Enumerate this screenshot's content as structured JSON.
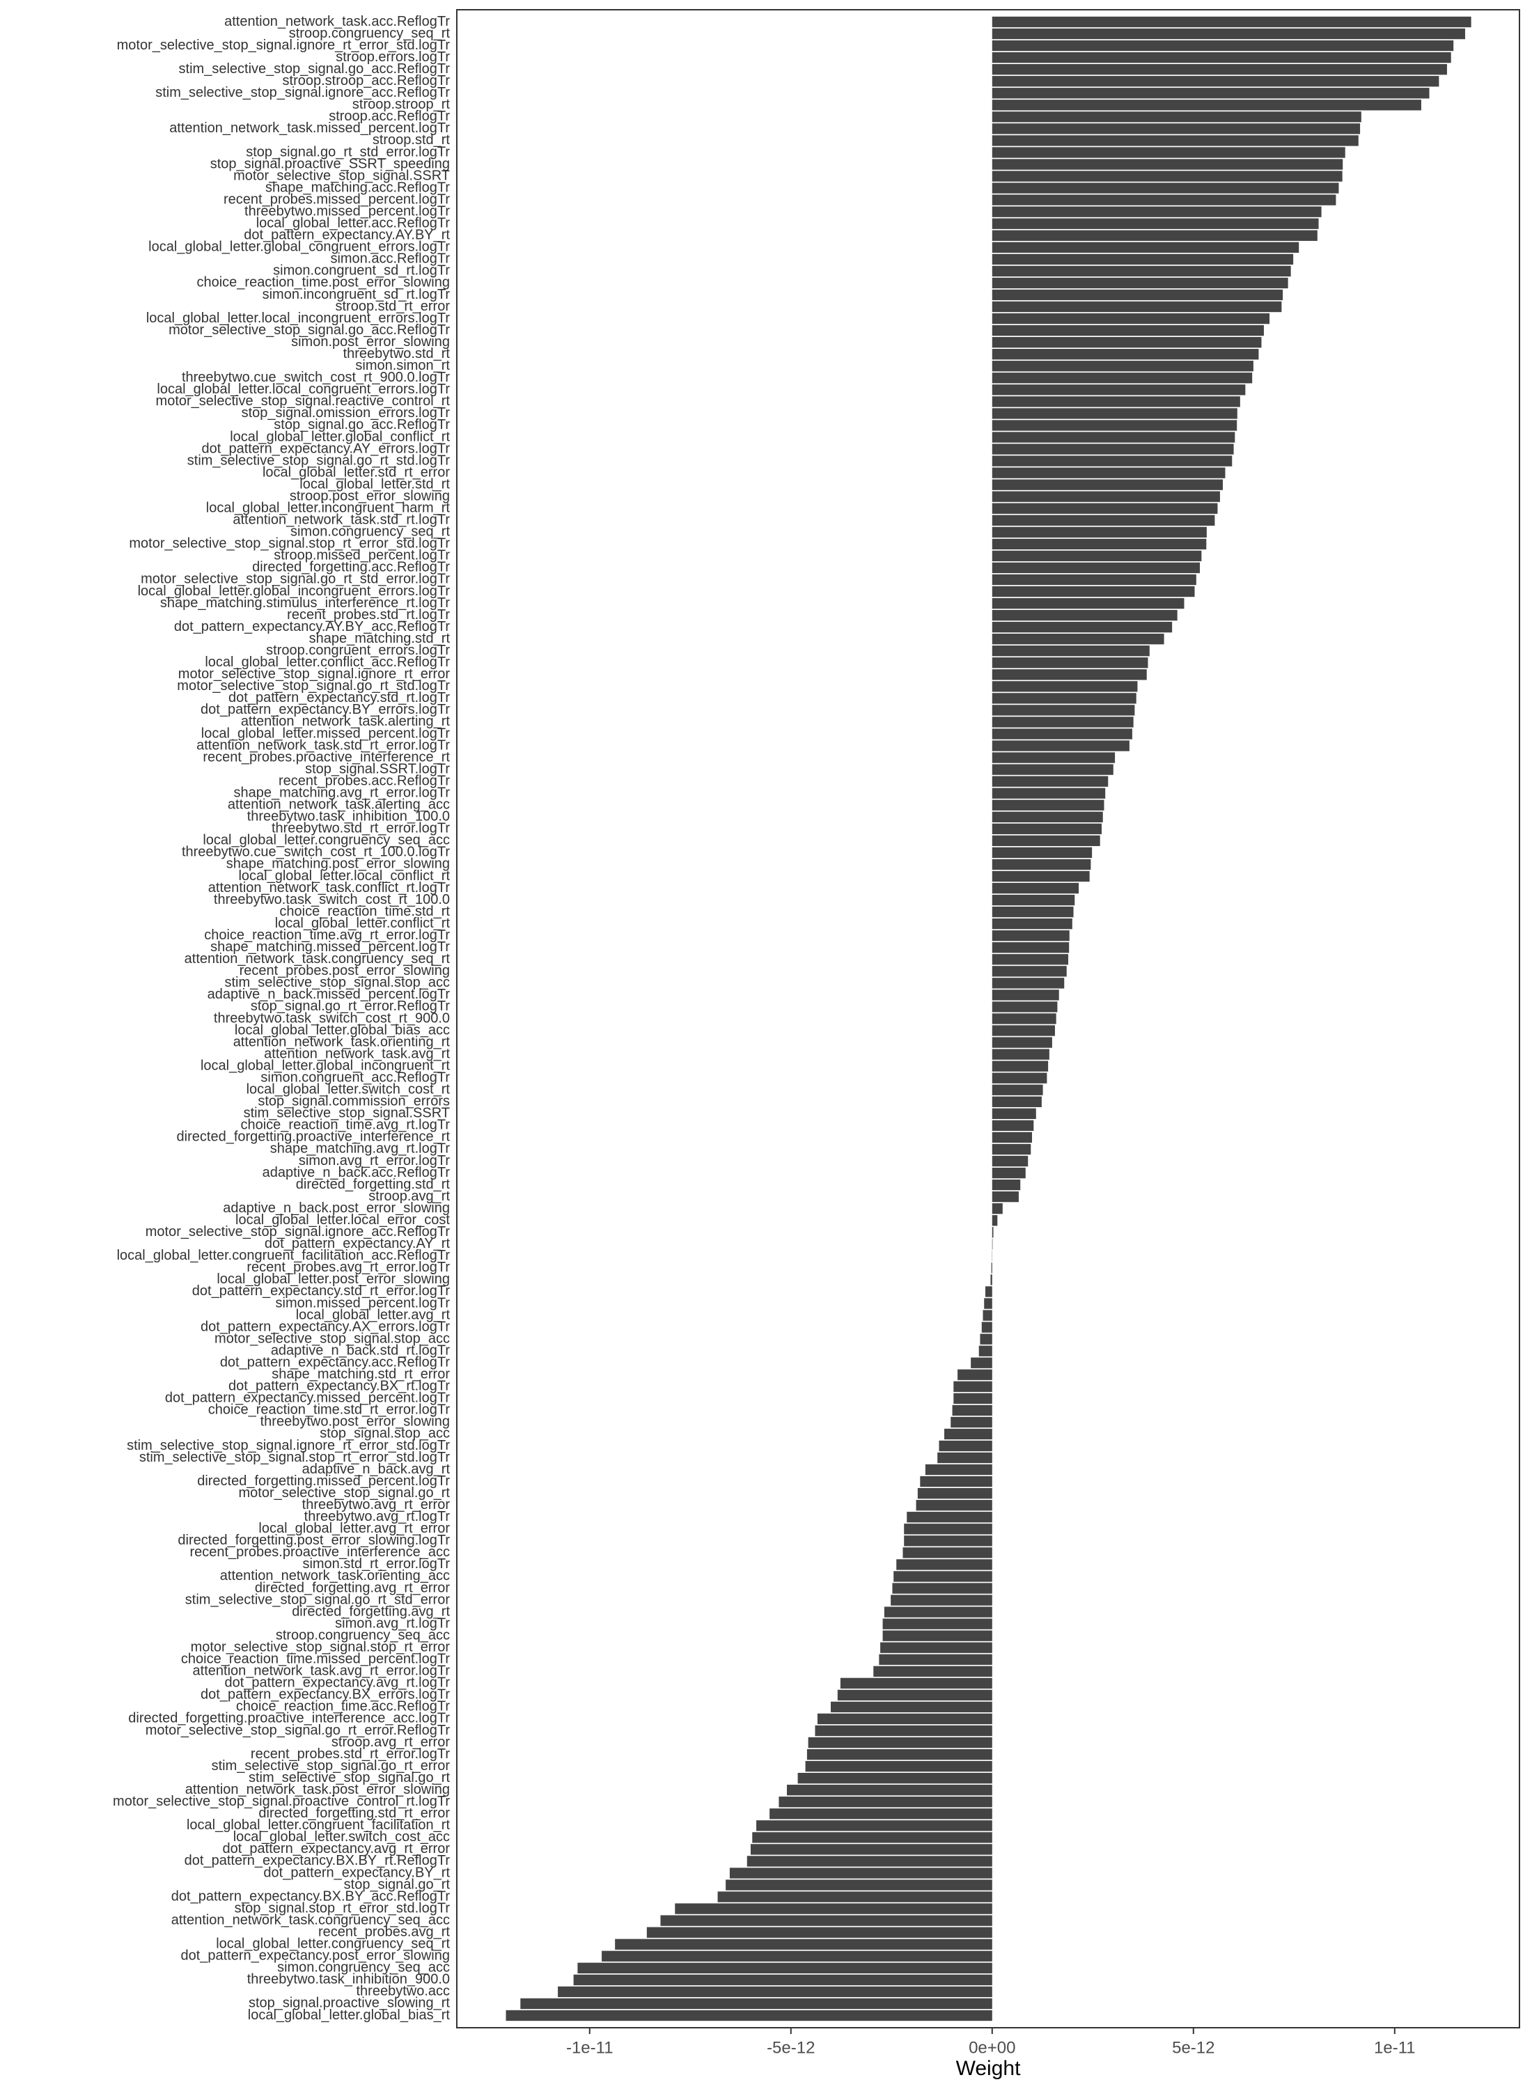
{
  "chart_data": {
    "type": "barh",
    "xlabel": "Weight",
    "color": "#444444",
    "categories": [
      "attention_network_task.acc.ReflogTr",
      "stroop.congruency_seq_rt",
      "motor_selective_stop_signal.ignore_rt_error_std.logTr",
      "stroop.errors.logTr",
      "stim_selective_stop_signal.go_acc.ReflogTr",
      "stroop.stroop_acc.ReflogTr",
      "stim_selective_stop_signal.ignore_acc.ReflogTr",
      "stroop.stroop_rt",
      "stroop.acc.ReflogTr",
      "attention_network_task.missed_percent.logTr",
      "stroop.std_rt",
      "stop_signal.go_rt_std_error.logTr",
      "stop_signal.proactive_SSRT_speeding",
      "motor_selective_stop_signal.SSRT",
      "shape_matching.acc.ReflogTr",
      "recent_probes.missed_percent.logTr",
      "threebytwo.missed_percent.logTr",
      "local_global_letter.acc.ReflogTr",
      "dot_pattern_expectancy.AY.BY_rt",
      "local_global_letter.global_congruent_errors.logTr",
      "simon.acc.ReflogTr",
      "simon.congruent_sd_rt.logTr",
      "choice_reaction_time.post_error_slowing",
      "simon.incongruent_sd_rt.logTr",
      "stroop.std_rt_error",
      "local_global_letter.local_incongruent_errors.logTr",
      "motor_selective_stop_signal.go_acc.ReflogTr",
      "simon.post_error_slowing",
      "threebytwo.std_rt",
      "simon.simon_rt",
      "threebytwo.cue_switch_cost_rt_900.0.logTr",
      "local_global_letter.local_congruent_errors.logTr",
      "motor_selective_stop_signal.reactive_control_rt",
      "stop_signal.omission_errors.logTr",
      "stop_signal.go_acc.ReflogTr",
      "local_global_letter.global_conflict_rt",
      "dot_pattern_expectancy.AY_errors.logTr",
      "stim_selective_stop_signal.go_rt_std.logTr",
      "local_global_letter.std_rt_error",
      "local_global_letter.std_rt",
      "stroop.post_error_slowing",
      "local_global_letter.incongruent_harm_rt",
      "attention_network_task.std_rt.logTr",
      "simon.congruency_seq_rt",
      "motor_selective_stop_signal.stop_rt_error_std.logTr",
      "stroop.missed_percent.logTr",
      "directed_forgetting.acc.ReflogTr",
      "motor_selective_stop_signal.go_rt_std_error.logTr",
      "local_global_letter.global_incongruent_errors.logTr",
      "shape_matching.stimulus_interference_rt.logTr",
      "recent_probes.std_rt.logTr",
      "dot_pattern_expectancy.AY.BY_acc.ReflogTr",
      "shape_matching.std_rt",
      "stroop.congruent_errors.logTr",
      "local_global_letter.conflict_acc.ReflogTr",
      "motor_selective_stop_signal.ignore_rt_error",
      "motor_selective_stop_signal.go_rt_std.logTr",
      "dot_pattern_expectancy.std_rt.logTr",
      "dot_pattern_expectancy.BY_errors.logTr",
      "attention_network_task.alerting_rt",
      "local_global_letter.missed_percent.logTr",
      "attention_network_task.std_rt_error.logTr",
      "recent_probes.proactive_interference_rt",
      "stop_signal.SSRT.logTr",
      "recent_probes.acc.ReflogTr",
      "shape_matching.avg_rt_error.logTr",
      "attention_network_task.alerting_acc",
      "threebytwo.task_inhibition_100.0",
      "threebytwo.std_rt_error.logTr",
      "local_global_letter.congruency_seq_acc",
      "threebytwo.cue_switch_cost_rt_100.0.logTr",
      "shape_matching.post_error_slowing",
      "local_global_letter.local_conflict_rt",
      "attention_network_task.conflict_rt.logTr",
      "threebytwo.task_switch_cost_rt_100.0",
      "choice_reaction_time.std_rt",
      "local_global_letter.conflict_rt",
      "choice_reaction_time.avg_rt_error.logTr",
      "shape_matching.missed_percent.logTr",
      "attention_network_task.congruency_seq_rt",
      "recent_probes.post_error_slowing",
      "stim_selective_stop_signal.stop_acc",
      "adaptive_n_back.missed_percent.logTr",
      "stop_signal.go_rt_error.ReflogTr",
      "threebytwo.task_switch_cost_rt_900.0",
      "local_global_letter.global_bias_acc",
      "attention_network_task.orienting_rt",
      "attention_network_task.avg_rt",
      "local_global_letter.global_incongruent_rt",
      "simon.congruent_acc.ReflogTr",
      "local_global_letter.switch_cost_rt",
      "stop_signal.commission_errors",
      "stim_selective_stop_signal.SSRT",
      "choice_reaction_time.avg_rt.logTr",
      "directed_forgetting.proactive_interference_rt",
      "shape_matching.avg_rt.logTr",
      "simon.avg_rt_error.logTr",
      "adaptive_n_back.acc.ReflogTr",
      "directed_forgetting.std_rt",
      "stroop.avg_rt",
      "adaptive_n_back.post_error_slowing",
      "local_global_letter.local_error_cost",
      "motor_selective_stop_signal.ignore_acc.ReflogTr",
      "dot_pattern_expectancy.AY_rt",
      "local_global_letter.congruent_facilitation_acc.ReflogTr",
      "recent_probes.avg_rt_error.logTr",
      "local_global_letter.post_error_slowing",
      "dot_pattern_expectancy.std_rt_error.logTr",
      "simon.missed_percent.logTr",
      "local_global_letter.avg_rt",
      "dot_pattern_expectancy.AX_errors.logTr",
      "motor_selective_stop_signal.stop_acc",
      "adaptive_n_back.std_rt.logTr",
      "dot_pattern_expectancy.acc.ReflogTr",
      "shape_matching.std_rt_error",
      "dot_pattern_expectancy.BX_rt.logTr",
      "dot_pattern_expectancy.missed_percent.logTr",
      "choice_reaction_time.std_rt_error.logTr",
      "threebytwo.post_error_slowing",
      "stop_signal.stop_acc",
      "stim_selective_stop_signal.ignore_rt_error_std.logTr",
      "stim_selective_stop_signal.stop_rt_error_std.logTr",
      "adaptive_n_back.avg_rt",
      "directed_forgetting.missed_percent.logTr",
      "motor_selective_stop_signal.go_rt",
      "threebytwo.avg_rt_error",
      "threebytwo.avg_rt.logTr",
      "local_global_letter.avg_rt_error",
      "directed_forgetting.post_error_slowing.logTr",
      "recent_probes.proactive_interference_acc",
      "simon.std_rt_error.logTr",
      "attention_network_task.orienting_acc",
      "directed_forgetting.avg_rt_error",
      "stim_selective_stop_signal.go_rt_std_error",
      "directed_forgetting.avg_rt",
      "simon.avg_rt.logTr",
      "stroop.congruency_seq_acc",
      "motor_selective_stop_signal.stop_rt_error",
      "choice_reaction_time.missed_percent.logTr",
      "attention_network_task.avg_rt_error.logTr",
      "dot_pattern_expectancy.avg_rt.logTr",
      "dot_pattern_expectancy.BX_errors.logTr",
      "choice_reaction_time.acc.ReflogTr",
      "directed_forgetting.proactive_interference_acc.logTr",
      "motor_selective_stop_signal.go_rt_error.ReflogTr",
      "stroop.avg_rt_error",
      "recent_probes.std_rt_error.logTr",
      "stim_selective_stop_signal.go_rt_error",
      "stim_selective_stop_signal.go_rt",
      "attention_network_task.post_error_slowing",
      "motor_selective_stop_signal.proactive_control_rt.logTr",
      "directed_forgetting.std_rt_error",
      "local_global_letter.congruent_facilitation_rt",
      "local_global_letter.switch_cost_acc",
      "dot_pattern_expectancy.avg_rt_error",
      "dot_pattern_expectancy.BX.BY_rt.ReflogTr",
      "dot_pattern_expectancy.BY_rt",
      "stop_signal.go_rt",
      "dot_pattern_expectancy.BX.BY_acc.ReflogTr",
      "stop_signal.stop_rt_error_std.logTr",
      "attention_network_task.congruency_seq_acc",
      "recent_probes.avg_rt",
      "local_global_letter.congruency_seq_rt",
      "dot_pattern_expectancy.post_error_slowing",
      "simon.congruency_seq_acc",
      "threebytwo.task_inhibition_900.0",
      "threebytwo.acc",
      "stop_signal.proactive_slowing_rt",
      "local_global_letter.global_bias_rt"
    ],
    "values": [
      1.19e-11,
      1.175e-11,
      1.146e-11,
      1.14e-11,
      1.13e-11,
      1.11e-11,
      1.086e-11,
      1.066e-11,
      9.17e-12,
      9.14e-12,
      9.1e-12,
      8.77e-12,
      8.71e-12,
      8.7e-12,
      8.61e-12,
      8.54e-12,
      8.18e-12,
      8.11e-12,
      8.08e-12,
      7.62e-12,
      7.48e-12,
      7.42e-12,
      7.35e-12,
      7.22e-12,
      7.19e-12,
      6.89e-12,
      6.75e-12,
      6.69e-12,
      6.62e-12,
      6.49e-12,
      6.46e-12,
      6.29e-12,
      6.16e-12,
      6.09e-12,
      6.08e-12,
      6.03e-12,
      6e-12,
      5.96e-12,
      5.79e-12,
      5.73e-12,
      5.66e-12,
      5.6e-12,
      5.53e-12,
      5.33e-12,
      5.32e-12,
      5.2e-12,
      5.16e-12,
      5.07e-12,
      5.03e-12,
      4.77e-12,
      4.6e-12,
      4.47e-12,
      4.27e-12,
      3.91e-12,
      3.87e-12,
      3.84e-12,
      3.61e-12,
      3.58e-12,
      3.54e-12,
      3.51e-12,
      3.48e-12,
      3.41e-12,
      3.05e-12,
      3.01e-12,
      2.88e-12,
      2.81e-12,
      2.78e-12,
      2.75e-12,
      2.72e-12,
      2.68e-12,
      2.48e-12,
      2.45e-12,
      2.42e-12,
      2.15e-12,
      2.05e-12,
      2.02e-12,
      1.99e-12,
      1.92e-12,
      1.91e-12,
      1.89e-12,
      1.85e-12,
      1.79e-12,
      1.66e-12,
      1.62e-12,
      1.59e-12,
      1.56e-12,
      1.49e-12,
      1.42e-12,
      1.39e-12,
      1.36e-12,
      1.26e-12,
      1.23e-12,
      1.09e-12,
      1.03e-12,
      9.9e-13,
      9.6e-13,
      8.9e-13,
      8.3e-13,
      7e-13,
      6.6e-13,
      2.6e-13,
      1.3e-13,
      3e-14,
      1e-14,
      -5e-15,
      -2e-14,
      -4e-14,
      -1.7e-13,
      -2e-13,
      -2.3e-13,
      -2.6e-13,
      -3e-13,
      -3.3e-13,
      -5.3e-13,
      -8.6e-13,
      -9.6e-13,
      -9.6e-13,
      -9.9e-13,
      -1.03e-12,
      -1.19e-12,
      -1.32e-12,
      -1.36e-12,
      -1.66e-12,
      -1.79e-12,
      -1.85e-12,
      -1.89e-12,
      -2.12e-12,
      -2.19e-12,
      -2.19e-12,
      -2.22e-12,
      -2.38e-12,
      -2.45e-12,
      -2.48e-12,
      -2.52e-12,
      -2.68e-12,
      -2.72e-12,
      -2.72e-12,
      -2.78e-12,
      -2.81e-12,
      -2.95e-12,
      -3.77e-12,
      -3.84e-12,
      -4.01e-12,
      -4.34e-12,
      -4.4e-12,
      -4.57e-12,
      -4.6e-12,
      -4.64e-12,
      -4.83e-12,
      -5.1e-12,
      -5.3e-12,
      -5.53e-12,
      -5.86e-12,
      -5.96e-12,
      -6e-12,
      -6.09e-12,
      -6.52e-12,
      -6.62e-12,
      -6.82e-12,
      -7.88e-12,
      -8.24e-12,
      -8.58e-12,
      -9.37e-12,
      -9.7e-12,
      -1.03e-11,
      -1.04e-11,
      -1.079e-11,
      -1.172e-11,
      -1.208e-11
    ],
    "xlim": [
      -1.33e-11,
      1.31e-11
    ],
    "xticks": [
      {
        "value": -1e-11,
        "label": "-1e-11"
      },
      {
        "value": -5e-12,
        "label": "-5e-12"
      },
      {
        "value": 0,
        "label": "0e+00"
      },
      {
        "value": 5e-12,
        "label": "5e-12"
      },
      {
        "value": 1e-11,
        "label": "1e-11"
      }
    ],
    "grid": false
  }
}
